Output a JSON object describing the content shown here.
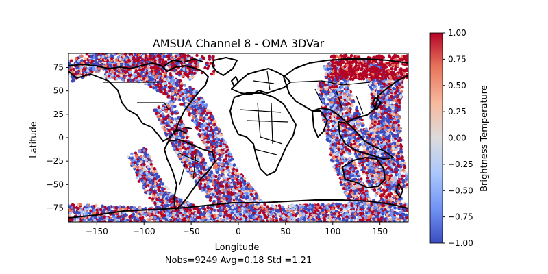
{
  "chart_data": {
    "type": "scatter",
    "title": "AMSUA Channel 8 - OMA 3DVar",
    "xlabel": "Longitude",
    "ylabel": "Latitude",
    "footer": "Nobs=9249 Avg=0.18 Std =1.21",
    "xlim": [
      -180,
      180
    ],
    "ylim": [
      -90,
      90
    ],
    "xticks": [
      -150,
      -100,
      -50,
      0,
      50,
      100,
      150
    ],
    "yticks": [
      -75,
      -50,
      -25,
      0,
      25,
      50,
      75
    ],
    "colorbar": {
      "label": "Brightness Temperature",
      "range": [
        -1.0,
        1.0
      ],
      "ticks": [
        "1.00",
        "0.75",
        "0.50",
        "0.25",
        "0.00",
        "-0.25",
        "-0.50",
        "-0.75",
        "-1.00"
      ],
      "colormap": "coolwarm",
      "colors": [
        "#3b4cc0",
        "#6f92f3",
        "#aac7fd",
        "#dddcdc",
        "#f7b89c",
        "#e7745b",
        "#b40426"
      ]
    },
    "stats": {
      "nobs": 9249,
      "avg": 0.18,
      "std": 1.21
    },
    "swaths": [
      {
        "name": "west-swath-1",
        "points": [
          [
            -108,
            -15
          ],
          [
            -95,
            -45
          ],
          [
            -75,
            -72
          ],
          [
            -45,
            -85
          ]
        ]
      },
      {
        "name": "west-swath-2",
        "points": [
          [
            -80,
            35
          ],
          [
            -63,
            0
          ],
          [
            -40,
            -38
          ],
          [
            -5,
            -80
          ]
        ]
      },
      {
        "name": "west-swath-3",
        "points": [
          [
            -140,
            75
          ],
          [
            -95,
            68
          ],
          [
            -48,
            40
          ],
          [
            -28,
            0
          ],
          [
            -10,
            -40
          ],
          [
            20,
            -78
          ]
        ]
      },
      {
        "name": "west-swath-4",
        "points": [
          [
            -180,
            70
          ],
          [
            -150,
            82
          ],
          [
            -110,
            88
          ],
          [
            -70,
            82
          ],
          [
            -45,
            70
          ]
        ]
      },
      {
        "name": "east-swath-1",
        "points": [
          [
            100,
            80
          ],
          [
            110,
            40
          ],
          [
            128,
            0
          ],
          [
            145,
            -40
          ],
          [
            165,
            -72
          ]
        ]
      },
      {
        "name": "east-swath-2",
        "points": [
          [
            95,
            60
          ],
          [
            100,
            20
          ],
          [
            110,
            -25
          ],
          [
            130,
            -70
          ],
          [
            150,
            -85
          ]
        ]
      },
      {
        "name": "east-swath-3",
        "points": [
          [
            165,
            70
          ],
          [
            160,
            30
          ],
          [
            162,
            -10
          ],
          [
            170,
            -55
          ]
        ]
      },
      {
        "name": "east-swath-4",
        "points": [
          [
            140,
            85
          ],
          [
            152,
            50
          ],
          [
            150,
            0
          ],
          [
            150,
            -45
          ]
        ]
      },
      {
        "name": "polar-south",
        "points": [
          [
            -180,
            -82
          ],
          [
            -90,
            -86
          ],
          [
            0,
            -84
          ],
          [
            90,
            -82
          ],
          [
            180,
            -80
          ]
        ]
      }
    ]
  }
}
